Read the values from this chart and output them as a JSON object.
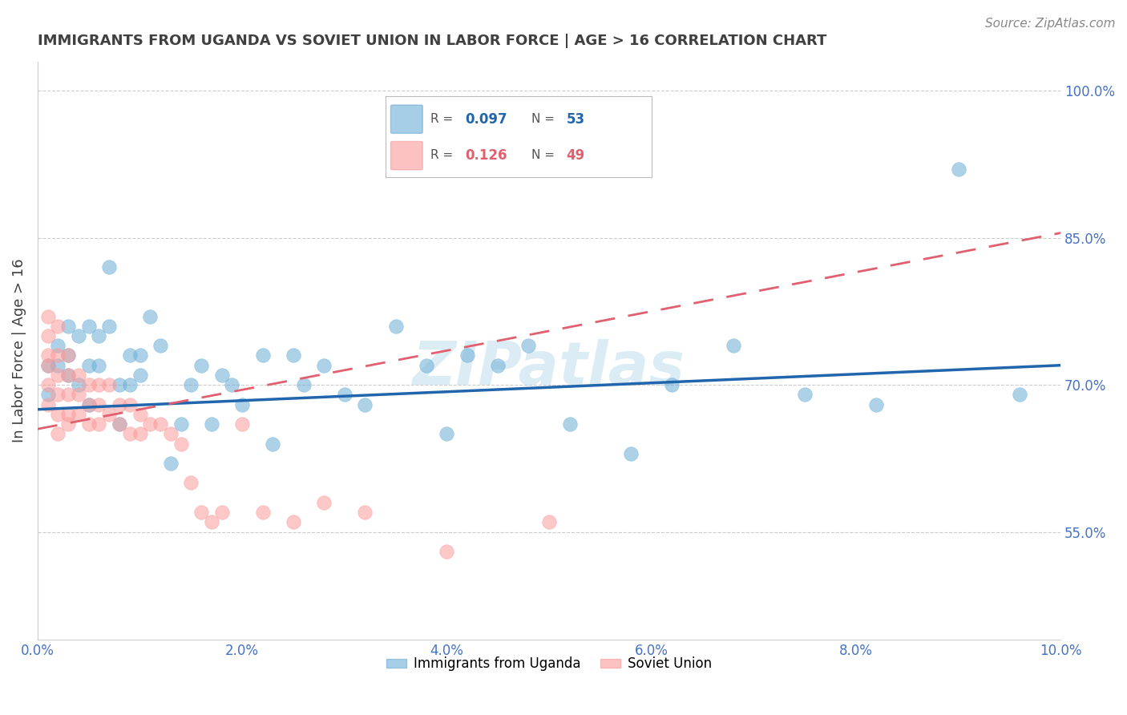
{
  "title": "IMMIGRANTS FROM UGANDA VS SOVIET UNION IN LABOR FORCE | AGE > 16 CORRELATION CHART",
  "source": "Source: ZipAtlas.com",
  "ylabel": "In Labor Force | Age > 16",
  "xlabel": "",
  "xlim": [
    0.0,
    0.1
  ],
  "ylim": [
    0.44,
    1.03
  ],
  "yticks": [
    0.55,
    0.7,
    0.85,
    1.0
  ],
  "ytick_labels": [
    "55.0%",
    "70.0%",
    "85.0%",
    "100.0%"
  ],
  "xticks": [
    0.0,
    0.02,
    0.04,
    0.06,
    0.08,
    0.1
  ],
  "xtick_labels": [
    "0.0%",
    "2.0%",
    "4.0%",
    "6.0%",
    "8.0%",
    "10.0%"
  ],
  "uganda_color": "#6baed6",
  "soviet_color": "#fb9a99",
  "uganda_line_color": "#2166ac",
  "soviet_line_color": "#e06070",
  "uganda_R": 0.097,
  "uganda_N": 53,
  "soviet_R": 0.126,
  "soviet_N": 49,
  "uganda_x": [
    0.001,
    0.001,
    0.002,
    0.002,
    0.003,
    0.003,
    0.003,
    0.004,
    0.004,
    0.005,
    0.005,
    0.005,
    0.006,
    0.006,
    0.007,
    0.007,
    0.008,
    0.008,
    0.009,
    0.009,
    0.01,
    0.01,
    0.011,
    0.012,
    0.013,
    0.014,
    0.015,
    0.016,
    0.017,
    0.018,
    0.019,
    0.02,
    0.022,
    0.023,
    0.025,
    0.026,
    0.028,
    0.03,
    0.032,
    0.035,
    0.038,
    0.04,
    0.042,
    0.045,
    0.048,
    0.052,
    0.058,
    0.062,
    0.068,
    0.075,
    0.082,
    0.09,
    0.096
  ],
  "uganda_y": [
    0.72,
    0.69,
    0.74,
    0.72,
    0.76,
    0.73,
    0.71,
    0.75,
    0.7,
    0.76,
    0.72,
    0.68,
    0.75,
    0.72,
    0.82,
    0.76,
    0.66,
    0.7,
    0.73,
    0.7,
    0.73,
    0.71,
    0.77,
    0.74,
    0.62,
    0.66,
    0.7,
    0.72,
    0.66,
    0.71,
    0.7,
    0.68,
    0.73,
    0.64,
    0.73,
    0.7,
    0.72,
    0.69,
    0.68,
    0.76,
    0.72,
    0.65,
    0.73,
    0.72,
    0.74,
    0.66,
    0.63,
    0.7,
    0.74,
    0.69,
    0.68,
    0.92,
    0.69
  ],
  "soviet_x": [
    0.001,
    0.001,
    0.001,
    0.001,
    0.001,
    0.001,
    0.002,
    0.002,
    0.002,
    0.002,
    0.002,
    0.002,
    0.003,
    0.003,
    0.003,
    0.003,
    0.003,
    0.004,
    0.004,
    0.004,
    0.005,
    0.005,
    0.005,
    0.006,
    0.006,
    0.006,
    0.007,
    0.007,
    0.008,
    0.008,
    0.009,
    0.009,
    0.01,
    0.01,
    0.011,
    0.012,
    0.013,
    0.014,
    0.015,
    0.016,
    0.017,
    0.018,
    0.02,
    0.022,
    0.025,
    0.028,
    0.032,
    0.04,
    0.05
  ],
  "soviet_y": [
    0.77,
    0.75,
    0.73,
    0.72,
    0.7,
    0.68,
    0.76,
    0.73,
    0.71,
    0.69,
    0.67,
    0.65,
    0.73,
    0.71,
    0.69,
    0.67,
    0.66,
    0.71,
    0.69,
    0.67,
    0.7,
    0.68,
    0.66,
    0.7,
    0.68,
    0.66,
    0.7,
    0.67,
    0.68,
    0.66,
    0.68,
    0.65,
    0.67,
    0.65,
    0.66,
    0.66,
    0.65,
    0.64,
    0.6,
    0.57,
    0.56,
    0.57,
    0.66,
    0.57,
    0.56,
    0.58,
    0.57,
    0.53,
    0.56
  ],
  "uganda_trend_x0": 0.0,
  "uganda_trend_y0": 0.675,
  "uganda_trend_x1": 0.1,
  "uganda_trend_y1": 0.72,
  "soviet_trend_x0": 0.0,
  "soviet_trend_y0": 0.655,
  "soviet_trend_x1": 0.1,
  "soviet_trend_y1": 0.855,
  "watermark": "ZIPatlas",
  "background_color": "#ffffff",
  "grid_color": "#cccccc",
  "axis_color": "#4472c4",
  "title_color": "#404040",
  "ylabel_color": "#404040"
}
